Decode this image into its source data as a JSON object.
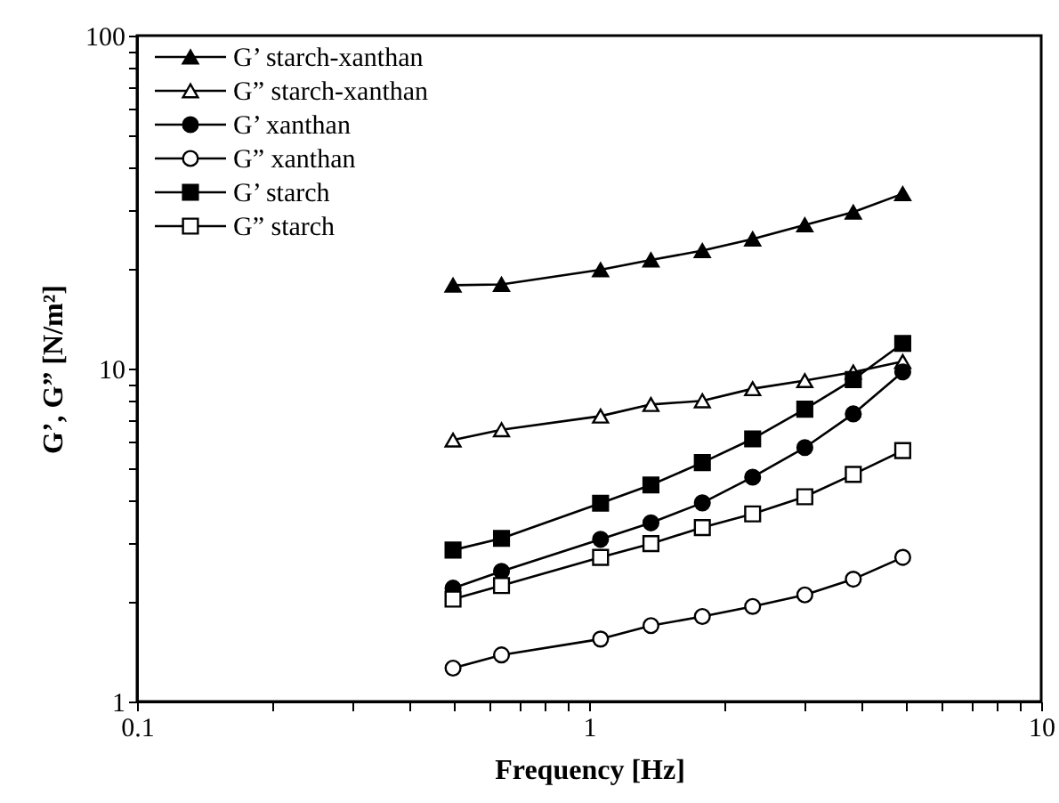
{
  "chart_data": {
    "type": "line",
    "xlabel": "Frequency [Hz]",
    "ylabel": "G’, G” [N/m²]",
    "log": "xy",
    "grid": false,
    "legend": "top left",
    "line_style": "solid",
    "xlim": [
      0.1,
      10
    ],
    "xticks": [
      0.1,
      {
        "value": 0.2,
        "label": null
      },
      {
        "value": 0.3,
        "label": null
      },
      {
        "value": 0.4,
        "label": null
      },
      {
        "value": 0.5,
        "label": null
      },
      {
        "value": 0.6,
        "label": null
      },
      {
        "value": 0.7,
        "label": null
      },
      {
        "value": 0.8,
        "label": null
      },
      {
        "value": 0.9,
        "label": null
      },
      1,
      {
        "value": 2,
        "label": null
      },
      {
        "value": 3,
        "label": null
      },
      {
        "value": 4,
        "label": null
      },
      {
        "value": 5,
        "label": null
      },
      {
        "value": 6,
        "label": null
      },
      {
        "value": 7,
        "label": null
      },
      {
        "value": 8,
        "label": null
      },
      {
        "value": 9,
        "label": null
      },
      10
    ],
    "ylim": [
      1,
      100
    ],
    "yticks": [
      1,
      {
        "value": 2,
        "label": null
      },
      {
        "value": 3,
        "label": null
      },
      {
        "value": 4,
        "label": null
      },
      {
        "value": 5,
        "label": null
      },
      {
        "value": 6,
        "label": null
      },
      {
        "value": 7,
        "label": null
      },
      {
        "value": 8,
        "label": null
      },
      {
        "value": 9,
        "label": null
      },
      10,
      {
        "value": 20,
        "label": null
      },
      {
        "value": 30,
        "label": null
      },
      {
        "value": 40,
        "label": null
      },
      {
        "value": 50,
        "label": null
      },
      {
        "value": 60,
        "label": null
      },
      {
        "value": 70,
        "label": null
      },
      {
        "value": 80,
        "label": null
      },
      {
        "value": 90,
        "label": null
      },
      100
    ],
    "x": [
      0.5,
      0.64,
      1.06,
      1.37,
      1.78,
      2.3,
      3.0,
      3.84,
      4.94
    ],
    "series": [
      {
        "name": "G’ starch-xanthan",
        "color": "#000000",
        "marker": "triangle",
        "values": [
          17.8,
          17.9,
          19.8,
          21.2,
          22.6,
          24.5,
          27,
          29.5,
          33.5
        ]
      },
      {
        "name": "G” starch-xanthan",
        "color": "#000000",
        "marker": "triangle",
        "values": [
          6.1,
          6.55,
          7.2,
          7.8,
          8.0,
          8.7,
          9.2,
          9.76,
          10.5
        ]
      },
      {
        "name": "G’ xanthan",
        "color": "#000000",
        "marker": "circle",
        "values": [
          2.19,
          2.46,
          3.07,
          3.44,
          3.95,
          4.72,
          5.79,
          7.31,
          9.77
        ]
      },
      {
        "name": "G” xanthan",
        "color": "#000000",
        "marker": "circle",
        "values": [
          1.26,
          1.38,
          1.54,
          1.69,
          1.8,
          1.93,
          2.09,
          2.33,
          2.71
        ]
      },
      {
        "name": "G’ starch",
        "color": "#000000",
        "marker": "square",
        "values": [
          2.85,
          3.09,
          3.94,
          4.47,
          5.22,
          6.15,
          7.55,
          9.27,
          11.9
        ]
      },
      {
        "name": "G” starch",
        "color": "#000000",
        "marker": "square",
        "values": [
          2.03,
          2.23,
          2.71,
          2.98,
          3.33,
          3.66,
          4.12,
          4.81,
          5.67
        ]
      }
    ]
  }
}
